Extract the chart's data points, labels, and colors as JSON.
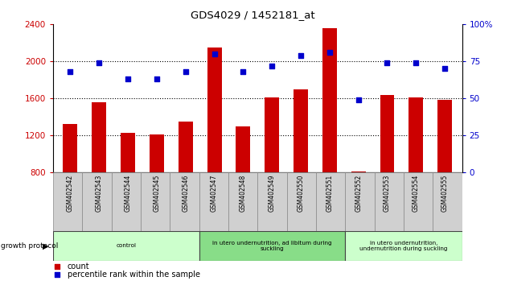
{
  "title": "GDS4029 / 1452181_at",
  "samples": [
    "GSM402542",
    "GSM402543",
    "GSM402544",
    "GSM402545",
    "GSM402546",
    "GSM402547",
    "GSM402548",
    "GSM402549",
    "GSM402550",
    "GSM402551",
    "GSM402552",
    "GSM402553",
    "GSM402554",
    "GSM402555"
  ],
  "counts": [
    1320,
    1560,
    1230,
    1210,
    1350,
    2150,
    1300,
    1610,
    1700,
    2360,
    810,
    1640,
    1610,
    1580
  ],
  "percentiles": [
    68,
    74,
    63,
    63,
    68,
    80,
    68,
    72,
    79,
    81,
    49,
    74,
    74,
    70
  ],
  "ymin": 800,
  "ymax": 2400,
  "yticks": [
    800,
    1200,
    1600,
    2000,
    2400
  ],
  "y2min": 0,
  "y2max": 100,
  "y2ticks": [
    0,
    25,
    50,
    75,
    100
  ],
  "bar_color": "#cc0000",
  "dot_color": "#0000cc",
  "bar_width": 0.5,
  "groups": [
    {
      "label": "control",
      "start": 0,
      "end": 5,
      "color": "#ccffcc"
    },
    {
      "label": "in utero undernutrition, ad libitum during\nsuckling",
      "start": 5,
      "end": 10,
      "color": "#88dd88"
    },
    {
      "label": "in utero undernutrition,\nundernutrition during suckling",
      "start": 10,
      "end": 14,
      "color": "#ccffcc"
    }
  ],
  "group_label_prefix": "growth protocol",
  "legend_count_label": "count",
  "legend_pct_label": "percentile rank within the sample",
  "tick_label_color_left": "#cc0000",
  "tick_label_color_right": "#0000cc",
  "label_bg": "#d0d0d0"
}
